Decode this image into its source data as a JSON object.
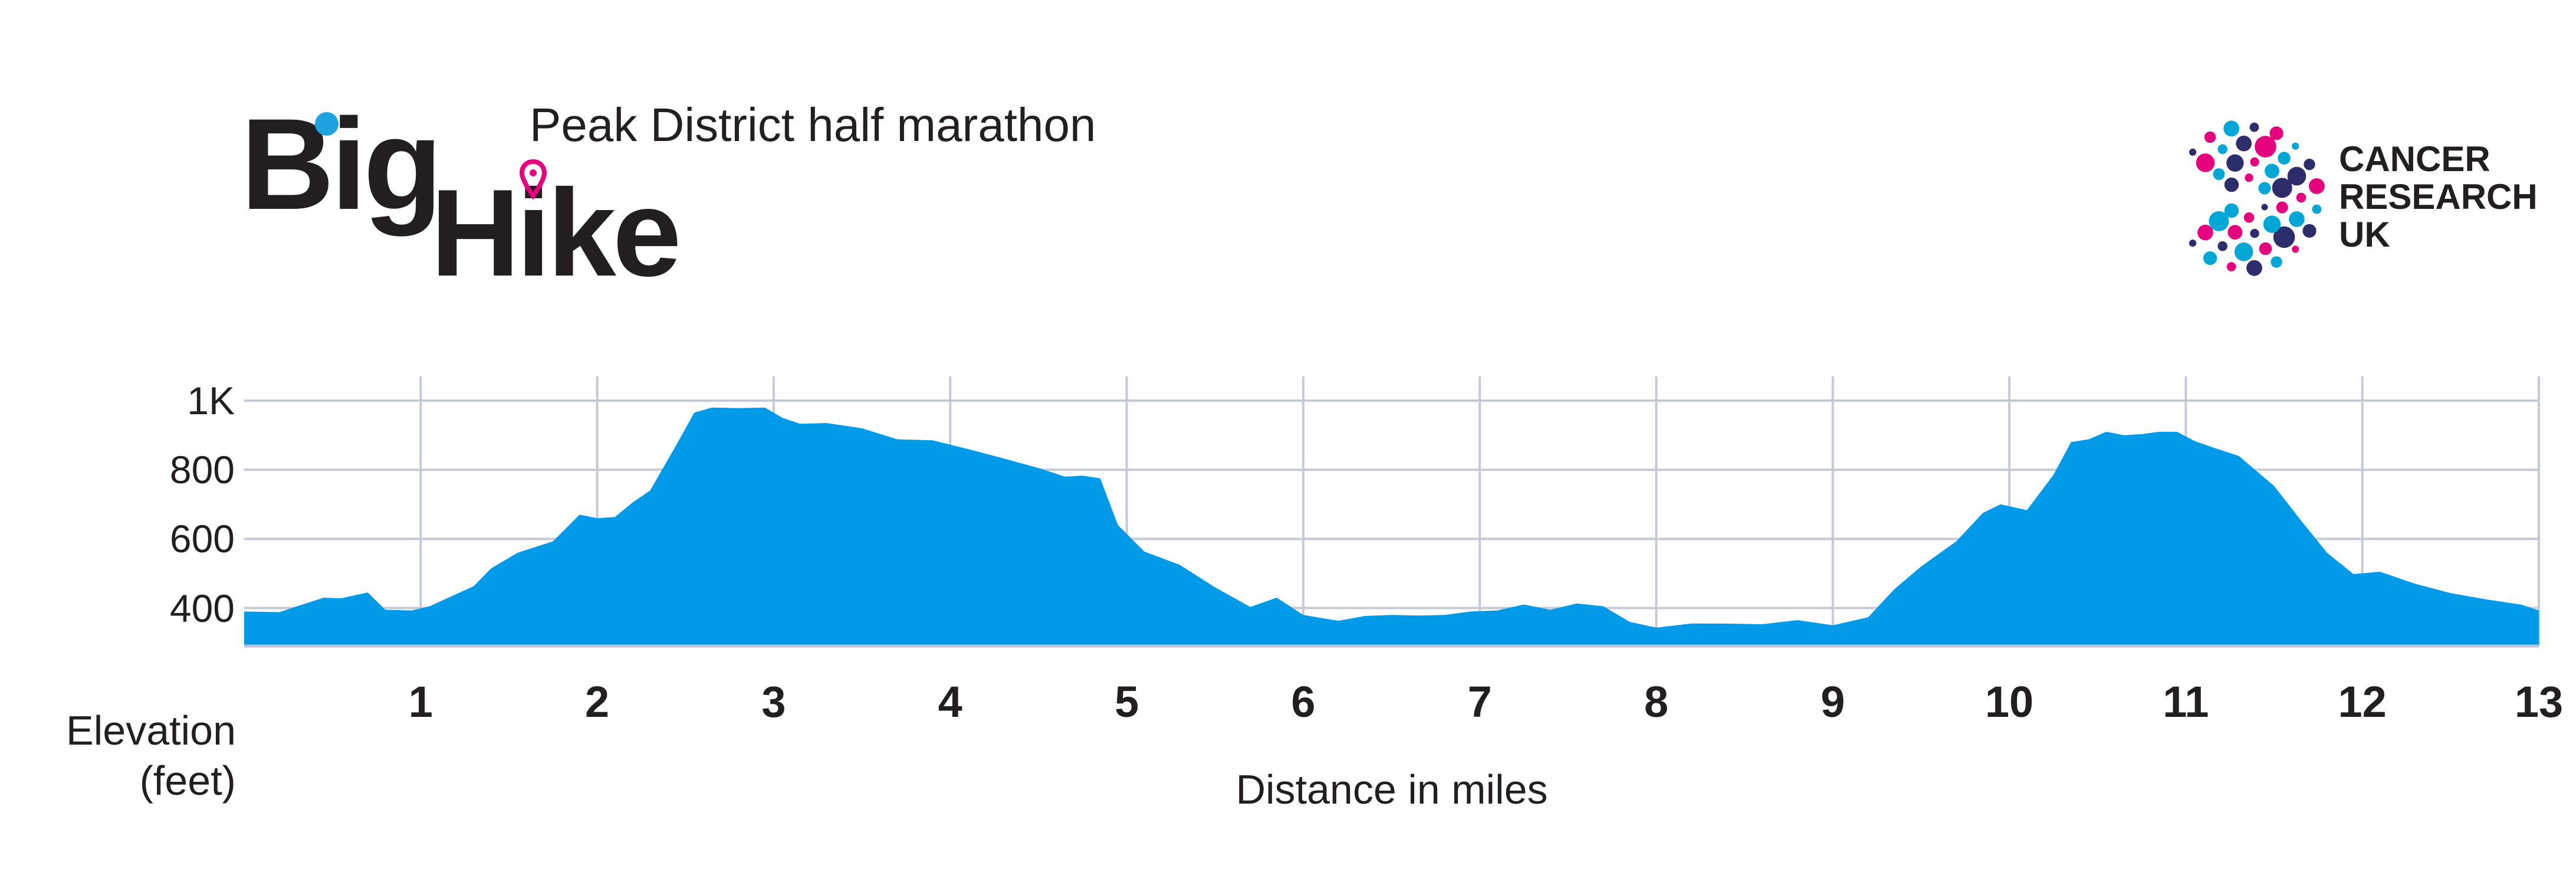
{
  "header": {
    "brand_line1": "Big",
    "brand_line2": "Hike",
    "subtitle": "Peak District half marathon",
    "partner_line1": "CANCER",
    "partner_line2": "RESEARCH",
    "partner_line3": "UK"
  },
  "colors": {
    "area_fill": "#009ae8",
    "grid": "#c5cad6",
    "text": "#231f20",
    "brand_dot_blue": "#1ea2e0",
    "brand_pin_magenta": "#e6007e",
    "cruk_navy": "#2e2d6b",
    "cruk_magenta": "#e5007d",
    "cruk_cyan": "#00a6d6"
  },
  "chart_data": {
    "type": "area",
    "xlabel": "Distance in miles",
    "ylabel": "Elevation\n(feet)",
    "ylabel_line1": "Elevation",
    "ylabel_line2": "(feet)",
    "xlim": [
      0,
      13
    ],
    "ylim": [
      290,
      1070
    ],
    "x_ticks": [
      "1",
      "2",
      "3",
      "4",
      "5",
      "6",
      "7",
      "8",
      "9",
      "10",
      "11",
      "12",
      "13"
    ],
    "y_ticks": [
      "400",
      "600",
      "800",
      "1K"
    ],
    "y_tick_values": [
      400,
      600,
      800,
      1000
    ],
    "grid": "on",
    "series": [
      {
        "x": [
          0,
          0.2,
          0.3,
          0.45,
          0.55,
          0.7,
          0.8,
          0.95,
          1.05,
          1.2,
          1.3,
          1.4,
          1.55,
          1.75,
          1.9,
          2.0,
          2.1,
          2.2,
          2.3,
          2.45,
          2.55,
          2.65,
          2.8,
          2.95,
          3.05,
          3.15,
          3.3,
          3.5,
          3.7,
          3.9,
          4.1,
          4.3,
          4.5,
          4.65,
          4.75,
          4.85,
          4.95,
          5.1,
          5.3,
          5.5,
          5.7,
          5.85,
          6.0,
          6.2,
          6.35,
          6.5,
          6.65,
          6.8,
          6.95,
          7.1,
          7.25,
          7.4,
          7.55,
          7.7,
          7.85,
          8.0,
          8.2,
          8.4,
          8.6,
          8.8,
          9.0,
          9.2,
          9.35,
          9.5,
          9.7,
          9.85,
          9.95,
          10.1,
          10.25,
          10.35,
          10.45,
          10.55,
          10.65,
          10.75,
          10.85,
          10.95,
          11.05,
          11.15,
          11.3,
          11.5,
          11.65,
          11.8,
          11.95,
          12.1,
          12.3,
          12.5,
          12.7,
          12.9,
          13.0
        ],
        "y": [
          390,
          395,
          400,
          430,
          435,
          440,
          395,
          400,
          400,
          440,
          470,
          510,
          560,
          600,
          665,
          660,
          670,
          700,
          740,
          880,
          960,
          980,
          985,
          975,
          950,
          940,
          930,
          920,
          895,
          880,
          860,
          840,
          800,
          780,
          790,
          770,
          640,
          570,
          520,
          460,
          410,
          425,
          380,
          370,
          372,
          380,
          385,
          375,
          390,
          400,
          405,
          395,
          420,
          400,
          360,
          350,
          350,
          355,
          360,
          360,
          350,
          380,
          450,
          520,
          600,
          670,
          700,
          690,
          780,
          880,
          895,
          905,
          900,
          910,
          905,
          910,
          890,
          860,
          840,
          760,
          650,
          560,
          505,
          500,
          470,
          450,
          420,
          410,
          400
        ]
      }
    ]
  }
}
